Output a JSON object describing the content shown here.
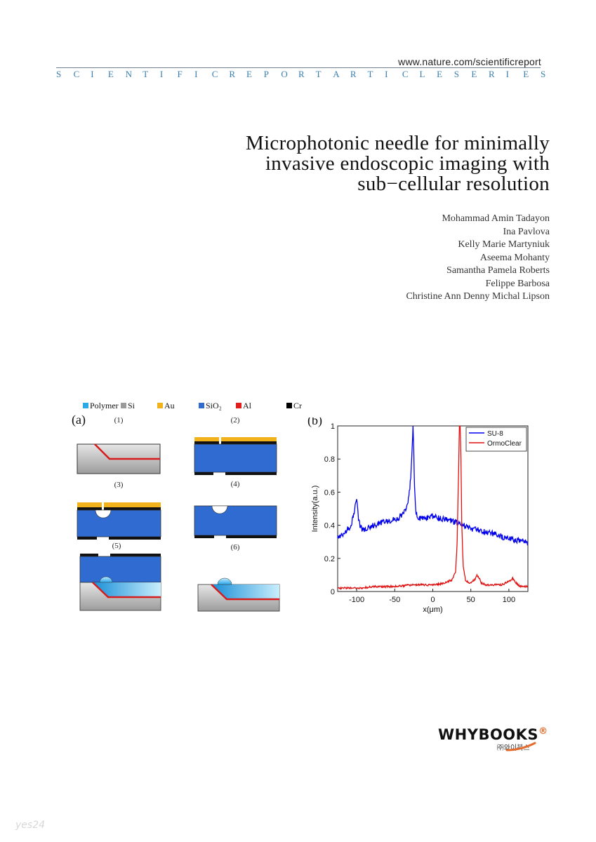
{
  "header": {
    "url": "www.nature.com/scientificreport",
    "series_letters": [
      "S",
      "C",
      "I",
      "E",
      "N",
      "T",
      "I",
      "F",
      "I",
      "C",
      "R",
      "E",
      "P",
      "O",
      "R",
      "T",
      "A",
      "R",
      "T",
      "I",
      "C",
      "L",
      "E",
      "S",
      "E",
      "R",
      "I",
      "E",
      "S"
    ]
  },
  "title_lines": [
    "Microphotonic needle for minimally",
    "invasive endoscopic imaging with",
    "sub−cellular resolution"
  ],
  "authors": [
    "Mohammad Amin Tadayon",
    "Ina Pavlova",
    "Kelly Marie Martyniuk",
    "Aseema Mohanty",
    "Samantha Pamela Roberts",
    "Felippe Barbosa",
    "Christine Ann Denny Michal Lipson"
  ],
  "figure_a": {
    "label": "(a)",
    "legend": [
      {
        "name": "Polymer",
        "color": "#2ba9e6"
      },
      {
        "name": "Si",
        "color": "#9a9a9a"
      },
      {
        "name": "Au",
        "color": "#f2b21b"
      },
      {
        "name": "SiO₂",
        "color": "#2f6bd0"
      },
      {
        "name": "Al",
        "color": "#e01e1e"
      },
      {
        "name": "Cr",
        "color": "#000000"
      }
    ],
    "steps": [
      "(1)",
      "(2)",
      "(3)",
      "(4)",
      "(5)",
      "(6)"
    ]
  },
  "chart_data": {
    "type": "line",
    "panel_label": "(b)",
    "xlabel": "x(μm)",
    "ylabel": "Intensity(a.u.)",
    "xlim": [
      -125,
      125
    ],
    "ylim": [
      0,
      1
    ],
    "xticks": [
      -100,
      -50,
      0,
      50,
      100
    ],
    "yticks": [
      0,
      0.2,
      0.4,
      0.6,
      0.8,
      1
    ],
    "ytick_labels": [
      "0",
      "0.2",
      "0.4",
      "0.6",
      "0.8",
      "1"
    ],
    "grid": false,
    "legend_position": "top-right",
    "series": [
      {
        "name": "SU-8",
        "color": "#0000ee",
        "x": [
          -125,
          -115,
          -107,
          -104,
          -100,
          -97,
          -93,
          -85,
          -75,
          -65,
          -55,
          -45,
          -40,
          -35,
          -32,
          -29,
          -27,
          -26,
          -25,
          -24,
          -22,
          -18,
          -12,
          -5,
          0,
          5,
          10,
          20,
          30,
          40,
          50,
          60,
          70,
          80,
          90,
          100,
          110,
          120,
          125
        ],
        "y": [
          0.33,
          0.36,
          0.4,
          0.47,
          0.55,
          0.42,
          0.37,
          0.39,
          0.4,
          0.42,
          0.43,
          0.44,
          0.47,
          0.5,
          0.56,
          0.68,
          0.86,
          1.0,
          0.85,
          0.62,
          0.47,
          0.44,
          0.44,
          0.45,
          0.46,
          0.45,
          0.44,
          0.43,
          0.42,
          0.4,
          0.38,
          0.37,
          0.36,
          0.35,
          0.33,
          0.32,
          0.31,
          0.3,
          0.29
        ]
      },
      {
        "name": "OrmoClear",
        "color": "#e01010",
        "x": [
          -125,
          -100,
          -75,
          -50,
          -25,
          0,
          15,
          25,
          30,
          32,
          34,
          35,
          36,
          37,
          38,
          40,
          43,
          48,
          55,
          58,
          61,
          64,
          70,
          80,
          90,
          95,
          100,
          105,
          110,
          115,
          125
        ],
        "y": [
          0.02,
          0.02,
          0.03,
          0.03,
          0.04,
          0.04,
          0.05,
          0.07,
          0.12,
          0.3,
          0.75,
          1.0,
          1.0,
          0.8,
          0.42,
          0.15,
          0.07,
          0.05,
          0.07,
          0.1,
          0.08,
          0.05,
          0.04,
          0.04,
          0.04,
          0.05,
          0.06,
          0.08,
          0.05,
          0.03,
          0.03
        ]
      }
    ]
  },
  "publisher": {
    "logo_main": "WHYBOOKS",
    "logo_mark": "®",
    "logo_sub": "㈜와이북스"
  },
  "watermark": "yes24"
}
